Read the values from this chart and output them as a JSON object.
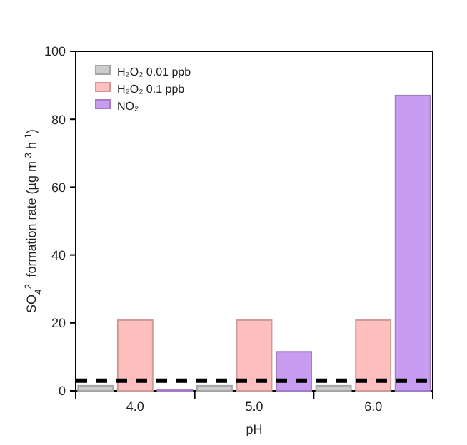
{
  "chart_data": {
    "type": "bar",
    "xlabel": "pH",
    "ylabel": "SO$_{4}$$^{2-}$ formation rate (µg m$^{-3}$ h$^{-1}$)",
    "categories": [
      "4.0",
      "5.0",
      "6.0"
    ],
    "series": [
      {
        "name": "H₂O₂ 0.01 ppb",
        "color": "#cccccc",
        "values": [
          1.5,
          1.5,
          1.5
        ]
      },
      {
        "name": "H₂O₂ 0.1 ppb",
        "color": "#ffbfbf",
        "values": [
          20.8,
          20.8,
          20.8
        ]
      },
      {
        "name": "NO₂",
        "color": "#c89cf0",
        "values": [
          0.2,
          11.5,
          87
        ]
      }
    ],
    "ylim": [
      0,
      100
    ],
    "yticks": [
      0,
      20,
      40,
      60,
      80,
      100
    ],
    "grid": false,
    "legend": "top left",
    "ref_lines": [
      {
        "axis": "y",
        "value": 3,
        "color": "#000000",
        "line_style": "dashed"
      }
    ]
  }
}
